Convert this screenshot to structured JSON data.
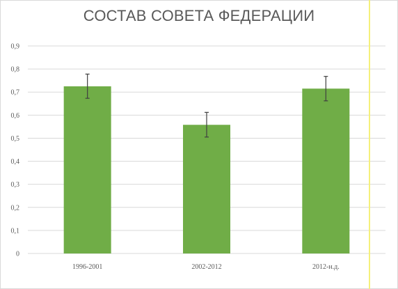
{
  "chart_data": {
    "type": "bar",
    "title": "СОСТАВ СОВЕТА ФЕДЕРАЦИИ",
    "xlabel": "",
    "ylabel": "",
    "categories": [
      "1996-2001",
      "2002-2012",
      "2012-н.д."
    ],
    "values": [
      0.725,
      0.558,
      0.715
    ],
    "error_bars": [
      [
        0.673,
        0.778
      ],
      [
        0.505,
        0.612
      ],
      [
        0.662,
        0.768
      ]
    ],
    "ylim": [
      0,
      0.9
    ],
    "yticks": [
      "0",
      "0,1",
      "0,2",
      "0,3",
      "0,4",
      "0,5",
      "0,6",
      "0,7",
      "0,8",
      "0,9"
    ],
    "grid": true,
    "legend": "none",
    "bar_color": "#70ad47",
    "grid_color": "#d9d9d9",
    "errorbar_color": "#404040"
  }
}
